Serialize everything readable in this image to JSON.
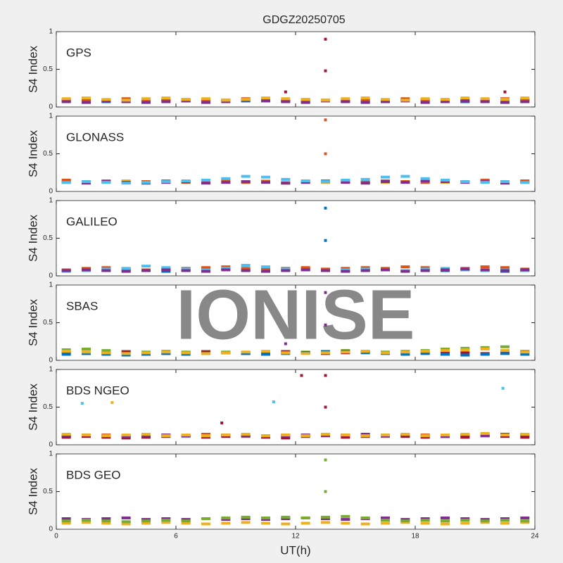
{
  "title": "GDGZ20250705",
  "xlabel": "UT(h)",
  "watermark": "IONISE",
  "chart_data": [
    {
      "type": "scatter",
      "label": "GPS",
      "ylabel": "S4 Index",
      "xlim": [
        0,
        24
      ],
      "ylim": [
        0,
        1
      ],
      "yticks": [
        0,
        0.5,
        1
      ],
      "x": [
        0.5,
        1.5,
        2.5,
        3.5,
        4.5,
        5.5,
        6.5,
        7.5,
        8.5,
        9.5,
        10.5,
        11.5,
        12.5,
        13.5,
        14.5,
        15.5,
        16.5,
        17.5,
        18.5,
        19.5,
        20.5,
        21.5,
        22.5,
        23.5
      ],
      "series": [
        {
          "color": "#0072BD",
          "values": [
            0.08,
            0.09,
            0.07,
            0.08,
            0.1,
            0.09,
            0.08,
            0.07,
            0.09,
            0.08,
            0.1,
            0.08,
            0.07,
            0.09,
            0.08,
            0.07,
            0.08,
            0.09,
            0.1,
            0.08,
            0.07,
            0.09,
            0.08,
            0.1
          ]
        },
        {
          "color": "#D95319",
          "values": [
            0.1,
            0.08,
            0.09,
            0.11,
            0.08,
            0.09,
            0.1,
            0.08,
            0.09,
            0.11,
            0.09,
            0.08,
            0.1,
            0.09,
            0.08,
            0.1,
            0.09,
            0.11,
            0.08,
            0.1,
            0.09,
            0.08,
            0.11,
            0.09
          ]
        },
        {
          "color": "#7E2F8E",
          "values": [
            0.07,
            0.06,
            0.08,
            0.07,
            0.06,
            0.07,
            0.08,
            0.06,
            0.07,
            0.09,
            0.08,
            0.07,
            0.06,
            0.08,
            0.07,
            0.06,
            0.07,
            0.08,
            0.06,
            0.07,
            0.08,
            0.07,
            0.06,
            0.07
          ]
        },
        {
          "color": "#EDB120",
          "values": [
            0.11,
            0.12,
            0.1,
            0.09,
            0.11,
            0.12,
            0.1,
            0.11,
            0.09,
            0.1,
            0.12,
            0.11,
            0.1,
            0.09,
            0.11,
            0.12,
            0.1,
            0.09,
            0.11,
            0.1,
            0.12,
            0.11,
            0.1,
            0.12
          ]
        },
        {
          "color": "#A2142F",
          "x": [
            13.5,
            13.5,
            11.5,
            22.5
          ],
          "values": [
            0.9,
            0.48,
            0.2,
            0.2
          ]
        }
      ]
    },
    {
      "type": "scatter",
      "label": "GLONASS",
      "ylabel": "S4 Index",
      "xlim": [
        0,
        24
      ],
      "ylim": [
        0,
        1
      ],
      "yticks": [
        0,
        0.5,
        1
      ],
      "x": [
        0.5,
        1.5,
        2.5,
        3.5,
        4.5,
        5.5,
        6.5,
        7.5,
        8.5,
        9.5,
        10.5,
        11.5,
        12.5,
        13.5,
        14.5,
        15.5,
        16.5,
        17.5,
        18.5,
        19.5,
        20.5,
        21.5,
        22.5,
        23.5
      ],
      "series": [
        {
          "color": "#EDB120",
          "values": [
            0.14,
            0.13,
            0.12,
            0.14,
            0.13,
            0.12,
            0.13,
            0.14,
            0.12,
            0.13,
            0.14,
            0.12,
            0.13,
            0.12,
            0.14,
            0.13,
            0.12,
            0.13,
            0.14,
            0.12,
            0.13,
            0.14,
            0.12,
            0.13
          ]
        },
        {
          "color": "#D95319",
          "values": [
            0.15,
            0.13,
            0.14,
            0.12,
            0.13,
            0.14,
            0.12,
            0.13,
            0.15,
            0.12,
            0.13,
            0.11,
            0.12,
            0.14,
            0.13,
            0.12,
            0.14,
            0.13,
            0.12,
            0.14,
            0.13,
            0.15,
            0.13,
            0.14
          ]
        },
        {
          "color": "#7E2F8E",
          "values": [
            0.12,
            0.11,
            0.13,
            0.12,
            0.11,
            0.12,
            0.13,
            0.11,
            0.12,
            0.13,
            0.12,
            0.11,
            0.12,
            0.13,
            0.12,
            0.11,
            0.13,
            0.12,
            0.14,
            0.13,
            0.12,
            0.13,
            0.11,
            0.12
          ]
        },
        {
          "color": "#4DBEEE",
          "values": [
            0.12,
            0.13,
            0.12,
            0.11,
            0.12,
            0.13,
            0.14,
            0.15,
            0.17,
            0.2,
            0.19,
            0.16,
            0.14,
            0.13,
            0.15,
            0.16,
            0.19,
            0.2,
            0.17,
            0.15,
            0.13,
            0.12,
            0.13,
            0.12
          ]
        },
        {
          "color": "#D95319",
          "x": [
            13.5,
            13.5
          ],
          "values": [
            0.95,
            0.5
          ]
        }
      ]
    },
    {
      "type": "scatter",
      "label": "GALILEO",
      "ylabel": "S4 Index",
      "xlim": [
        0,
        24
      ],
      "ylim": [
        0,
        1
      ],
      "yticks": [
        0,
        0.5,
        1
      ],
      "x": [
        0.5,
        1.5,
        2.5,
        3.5,
        4.5,
        5.5,
        6.5,
        7.5,
        8.5,
        9.5,
        10.5,
        11.5,
        12.5,
        13.5,
        14.5,
        15.5,
        16.5,
        17.5,
        18.5,
        19.5,
        20.5,
        21.5,
        22.5,
        23.5
      ],
      "series": [
        {
          "color": "#0072BD",
          "values": [
            0.07,
            0.08,
            0.07,
            0.08,
            0.07,
            0.06,
            0.07,
            0.08,
            0.09,
            0.08,
            0.07,
            0.08,
            0.09,
            0.08,
            0.07,
            0.08,
            0.09,
            0.07,
            0.08,
            0.07,
            0.08,
            0.07,
            0.06,
            0.07
          ]
        },
        {
          "color": "#D95319",
          "values": [
            0.08,
            0.1,
            0.11,
            0.09,
            0.08,
            0.09,
            0.1,
            0.11,
            0.12,
            0.1,
            0.09,
            0.1,
            0.11,
            0.09,
            0.1,
            0.11,
            0.1,
            0.12,
            0.11,
            0.09,
            0.1,
            0.12,
            0.11,
            0.09
          ]
        },
        {
          "color": "#4DBEEE",
          "values": [
            0.06,
            0.07,
            0.09,
            0.1,
            0.13,
            0.11,
            0.09,
            0.08,
            0.1,
            0.14,
            0.12,
            0.09,
            0.08,
            0.07,
            0.08,
            0.09,
            0.08,
            0.07,
            0.09,
            0.1,
            0.08,
            0.07,
            0.08,
            0.07
          ]
        },
        {
          "color": "#7E2F8E",
          "values": [
            0.07,
            0.08,
            0.07,
            0.06,
            0.07,
            0.08,
            0.07,
            0.06,
            0.08,
            0.07,
            0.06,
            0.07,
            0.08,
            0.07,
            0.06,
            0.07,
            0.08,
            0.06,
            0.07,
            0.08,
            0.09,
            0.08,
            0.07,
            0.08
          ]
        },
        {
          "color": "#0072BD",
          "x": [
            13.5,
            13.5
          ],
          "values": [
            0.9,
            0.47
          ]
        }
      ]
    },
    {
      "type": "scatter",
      "label": "SBAS",
      "ylabel": "S4 Index",
      "xlim": [
        0,
        24
      ],
      "ylim": [
        0,
        1
      ],
      "yticks": [
        0,
        0.5,
        1
      ],
      "x": [
        0.5,
        1.5,
        2.5,
        3.5,
        4.5,
        5.5,
        6.5,
        7.5,
        8.5,
        9.5,
        10.5,
        11.5,
        12.5,
        13.5,
        14.5,
        15.5,
        16.5,
        17.5,
        18.5,
        19.5,
        20.5,
        21.5,
        22.5,
        23.5
      ],
      "series": [
        {
          "color": "#77AC30",
          "values": [
            0.14,
            0.15,
            0.13,
            0.12,
            0.11,
            0.12,
            0.11,
            0.12,
            0.11,
            0.1,
            0.11,
            0.12,
            0.11,
            0.12,
            0.13,
            0.12,
            0.11,
            0.12,
            0.13,
            0.15,
            0.16,
            0.17,
            0.18,
            0.12
          ]
        },
        {
          "color": "#A2142F",
          "values": [
            0.1,
            0.09,
            0.1,
            0.11,
            0.1,
            0.09,
            0.1,
            0.11,
            0.1,
            0.09,
            0.1,
            0.11,
            0.1,
            0.09,
            0.1,
            0.11,
            0.1,
            0.09,
            0.1,
            0.11,
            0.1,
            0.09,
            0.1,
            0.11
          ]
        },
        {
          "color": "#0072BD",
          "values": [
            0.08,
            0.09,
            0.08,
            0.07,
            0.08,
            0.09,
            0.08,
            0.09,
            0.1,
            0.09,
            0.08,
            0.09,
            0.1,
            0.11,
            0.12,
            0.1,
            0.09,
            0.08,
            0.09,
            0.08,
            0.07,
            0.08,
            0.09,
            0.08
          ]
        },
        {
          "color": "#EDB120",
          "values": [
            0.12,
            0.11,
            0.1,
            0.09,
            0.1,
            0.11,
            0.1,
            0.09,
            0.1,
            0.11,
            0.12,
            0.1,
            0.09,
            0.1,
            0.11,
            0.12,
            0.1,
            0.11,
            0.12,
            0.13,
            0.14,
            0.15,
            0.13,
            0.11
          ]
        },
        {
          "color": "#7E2F8E",
          "x": [
            13.5,
            13.5,
            11.5
          ],
          "values": [
            0.9,
            0.47,
            0.22
          ]
        }
      ]
    },
    {
      "type": "scatter",
      "label": "BDS NGEO",
      "ylabel": "S4 Index",
      "xlim": [
        0,
        24
      ],
      "ylim": [
        0,
        1
      ],
      "yticks": [
        0,
        0.5,
        1
      ],
      "x": [
        0.5,
        1.5,
        2.5,
        3.5,
        4.5,
        5.5,
        6.5,
        7.5,
        8.5,
        9.5,
        10.5,
        11.5,
        12.5,
        13.5,
        14.5,
        15.5,
        16.5,
        17.5,
        18.5,
        19.5,
        20.5,
        21.5,
        22.5,
        23.5
      ],
      "series": [
        {
          "color": "#4DBEEE",
          "values": [
            0.13,
            0.12,
            0.11,
            0.12,
            0.13,
            0.12,
            0.11,
            0.12,
            0.13,
            0.12,
            0.11,
            0.12,
            0.13,
            0.14,
            0.13,
            0.12,
            0.13,
            0.12,
            0.11,
            0.12,
            0.13,
            0.14,
            0.13,
            0.12
          ]
        },
        {
          "color": "#D95319",
          "values": [
            0.11,
            0.12,
            0.13,
            0.12,
            0.11,
            0.13,
            0.12,
            0.14,
            0.12,
            0.11,
            0.12,
            0.13,
            0.12,
            0.14,
            0.13,
            0.12,
            0.11,
            0.12,
            0.13,
            0.12,
            0.11,
            0.12,
            0.13,
            0.14
          ]
        },
        {
          "color": "#A2142F",
          "values": [
            0.1,
            0.11,
            0.1,
            0.09,
            0.1,
            0.11,
            0.12,
            0.1,
            0.11,
            0.12,
            0.1,
            0.09,
            0.11,
            0.12,
            0.1,
            0.11,
            0.12,
            0.11,
            0.1,
            0.11,
            0.1,
            0.12,
            0.11,
            0.1
          ]
        },
        {
          "color": "#7E2F8E",
          "values": [
            0.12,
            0.13,
            0.12,
            0.11,
            0.12,
            0.13,
            0.12,
            0.11,
            0.13,
            0.12,
            0.11,
            0.12,
            0.13,
            0.12,
            0.13,
            0.14,
            0.12,
            0.13,
            0.12,
            0.11,
            0.13,
            0.12,
            0.14,
            0.13
          ]
        },
        {
          "color": "#EDB120",
          "values": [
            0.14,
            0.13,
            0.12,
            0.13,
            0.14,
            0.12,
            0.13,
            0.12,
            0.13,
            0.14,
            0.12,
            0.13,
            0.12,
            0.14,
            0.13,
            0.12,
            0.13,
            0.14,
            0.12,
            0.13,
            0.14,
            0.15,
            0.13,
            0.14
          ]
        },
        {
          "color": "#4DBEEE",
          "x": [
            1.3,
            10.9,
            22.4
          ],
          "values": [
            0.55,
            0.57,
            0.75
          ]
        },
        {
          "color": "#A2142F",
          "x": [
            8.3,
            12.3,
            13.5,
            13.5
          ],
          "values": [
            0.29,
            0.92,
            0.92,
            0.5
          ]
        },
        {
          "color": "#EDB120",
          "x": [
            2.8
          ],
          "values": [
            0.56
          ]
        }
      ]
    },
    {
      "type": "scatter",
      "label": "BDS GEO",
      "ylabel": "S4 Index",
      "xlim": [
        0,
        24
      ],
      "ylim": [
        0,
        1
      ],
      "yticks": [
        0,
        0.5,
        1
      ],
      "xticks": [
        0,
        6,
        12,
        18,
        24
      ],
      "x": [
        0.5,
        1.5,
        2.5,
        3.5,
        4.5,
        5.5,
        6.5,
        7.5,
        8.5,
        9.5,
        10.5,
        11.5,
        12.5,
        13.5,
        14.5,
        15.5,
        16.5,
        17.5,
        18.5,
        19.5,
        20.5,
        21.5,
        22.5,
        23.5
      ],
      "series": [
        {
          "color": "#7E2F8E",
          "values": [
            0.14,
            0.13,
            0.14,
            0.15,
            0.13,
            0.14,
            0.13,
            0.14,
            0.13,
            0.14,
            0.13,
            0.14,
            0.15,
            0.14,
            0.13,
            0.14,
            0.15,
            0.13,
            0.14,
            0.15,
            0.14,
            0.13,
            0.14,
            0.15
          ]
        },
        {
          "color": "#EDB120",
          "values": [
            0.08,
            0.09,
            0.08,
            0.07,
            0.08,
            0.09,
            0.08,
            0.07,
            0.08,
            0.09,
            0.08,
            0.07,
            0.08,
            0.09,
            0.08,
            0.07,
            0.08,
            0.09,
            0.08,
            0.07,
            0.08,
            0.09,
            0.08,
            0.09
          ]
        },
        {
          "color": "#77AC30",
          "values": [
            0.11,
            0.12,
            0.11,
            0.1,
            0.11,
            0.12,
            0.11,
            0.14,
            0.15,
            0.16,
            0.15,
            0.16,
            0.15,
            0.16,
            0.17,
            0.15,
            0.12,
            0.11,
            0.12,
            0.11,
            0.12,
            0.11,
            0.12,
            0.11
          ]
        },
        {
          "color": "#77AC30",
          "x": [
            13.5,
            13.5
          ],
          "values": [
            0.92,
            0.5
          ]
        }
      ]
    }
  ]
}
